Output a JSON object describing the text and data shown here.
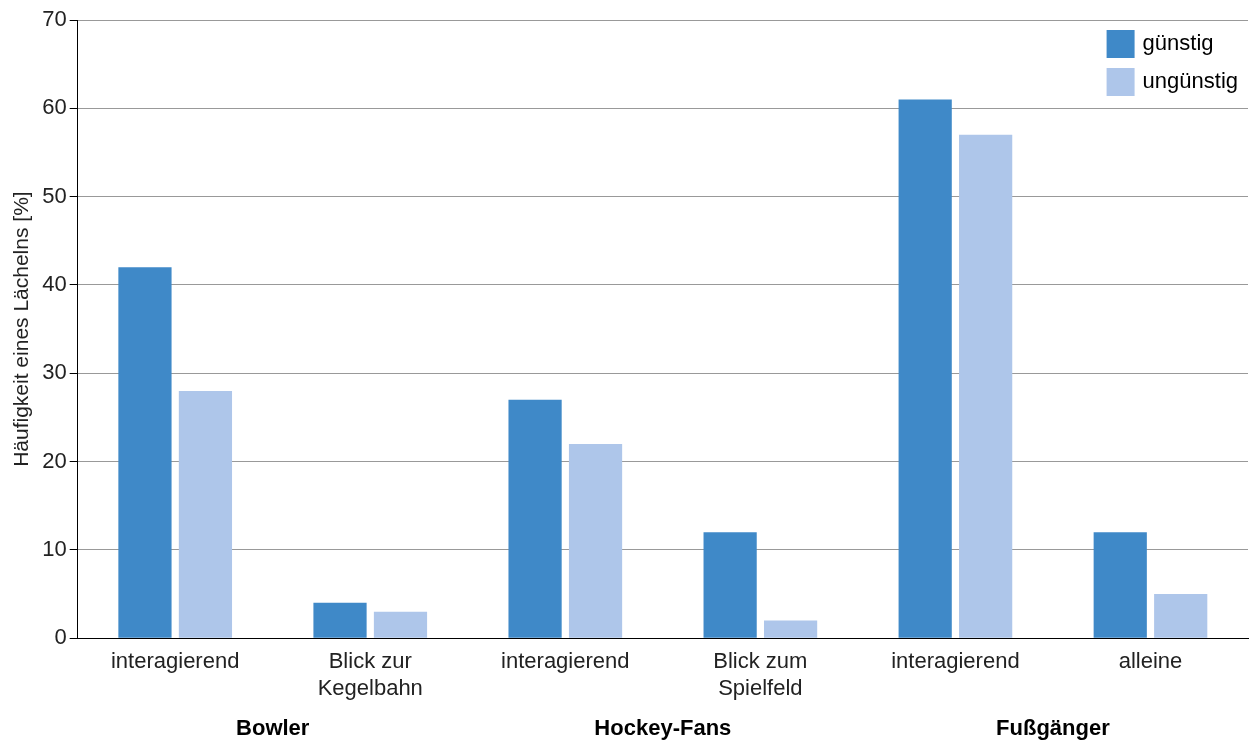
{
  "chart_data": {
    "type": "bar",
    "ylabel": "Häufigkeit eines Lächelns [%]",
    "categories": [
      "interagierend",
      "Blick zur\nKegelbahn",
      "interagierend",
      "Blick zum\nSpielfeld",
      "interagierend",
      "alleine"
    ],
    "series": [
      {
        "name": "günstig",
        "color": "#3f89c8",
        "values": [
          42,
          4,
          27,
          12,
          61,
          12
        ]
      },
      {
        "name": "ungünstig",
        "color": "#aec6ea",
        "values": [
          28,
          3,
          22,
          2,
          57,
          5
        ]
      }
    ],
    "ylim": [
      0,
      70
    ],
    "yticks": [
      0,
      10,
      20,
      30,
      40,
      50,
      60,
      70
    ],
    "grid": "y",
    "legend": "top right",
    "annotations": [
      "Bowler",
      "Hockey-Fans",
      "Fußgänger"
    ]
  }
}
